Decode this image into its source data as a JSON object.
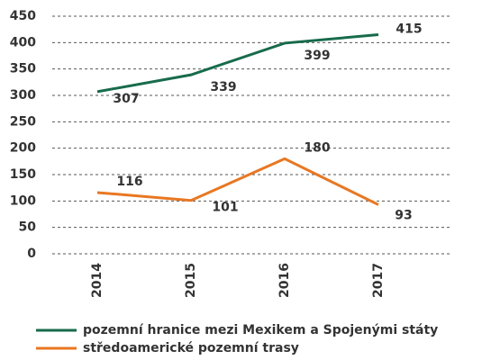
{
  "chart_data": {
    "type": "line",
    "categories": [
      "2014",
      "2015",
      "2016",
      "2017"
    ],
    "series": [
      {
        "name": "pozemní hranice mezi Mexikem a Spojenými státy",
        "color": "#176b4b",
        "values": [
          307,
          339,
          399,
          415
        ]
      },
      {
        "name": "středoamerické pozemní trasy",
        "color": "#e87722",
        "values": [
          116,
          101,
          180,
          93
        ]
      }
    ],
    "ylim": [
      0,
      450
    ],
    "yticks": [
      0,
      50,
      100,
      150,
      200,
      250,
      300,
      350,
      400,
      450
    ],
    "grid": true
  }
}
